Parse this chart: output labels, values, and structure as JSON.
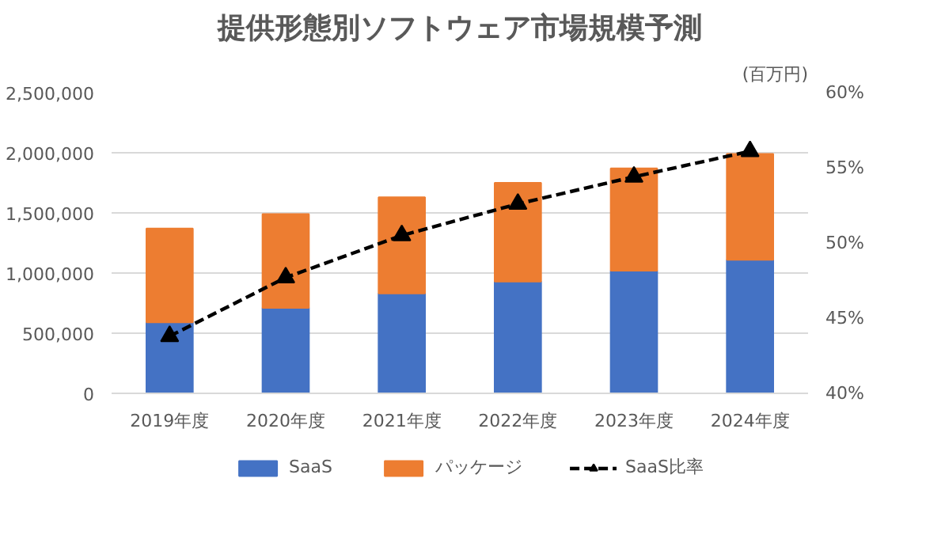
{
  "chart_data": {
    "type": "bar",
    "title": "提供形態別ソフトウェア市場規模予測",
    "subtitle": "(百万円)",
    "categories": [
      "2019年度",
      "2020年度",
      "2021年度",
      "2022年度",
      "2023年度",
      "2024年度"
    ],
    "stacked": true,
    "series": [
      {
        "name": "SaaS",
        "color": "#4472c4",
        "values": [
          590000,
          710000,
          830000,
          930000,
          1020000,
          1110000
        ]
      },
      {
        "name": "パッケージ",
        "color": "#ed7d31",
        "values": [
          780000,
          780000,
          800000,
          820000,
          850000,
          880000
        ]
      },
      {
        "name": "SaaS比率",
        "type": "line",
        "axis": "y2",
        "color": "#000000",
        "marker": "triangle",
        "line_style": "dashed",
        "values": [
          43.8,
          47.7,
          50.5,
          52.6,
          54.4,
          56.1
        ]
      }
    ],
    "ylim": [
      0,
      2500000
    ],
    "yticks": [
      {
        "value": 0,
        "label": "0"
      },
      {
        "value": 500000,
        "label": "500,000"
      },
      {
        "value": 1000000,
        "label": "1,000,000"
      },
      {
        "value": 1500000,
        "label": "1,500,000"
      },
      {
        "value": 2000000,
        "label": "2,000,000"
      },
      {
        "value": 2500000,
        "label": "2,500,000"
      }
    ],
    "y2lim": [
      40,
      60
    ],
    "y2ticks": [
      {
        "value": 40,
        "label": "40%"
      },
      {
        "value": 45,
        "label": "45%"
      },
      {
        "value": 50,
        "label": "50%"
      },
      {
        "value": 55,
        "label": "55%"
      },
      {
        "value": 60,
        "label": "60%"
      }
    ],
    "grid": "y",
    "legend": "bottom"
  }
}
